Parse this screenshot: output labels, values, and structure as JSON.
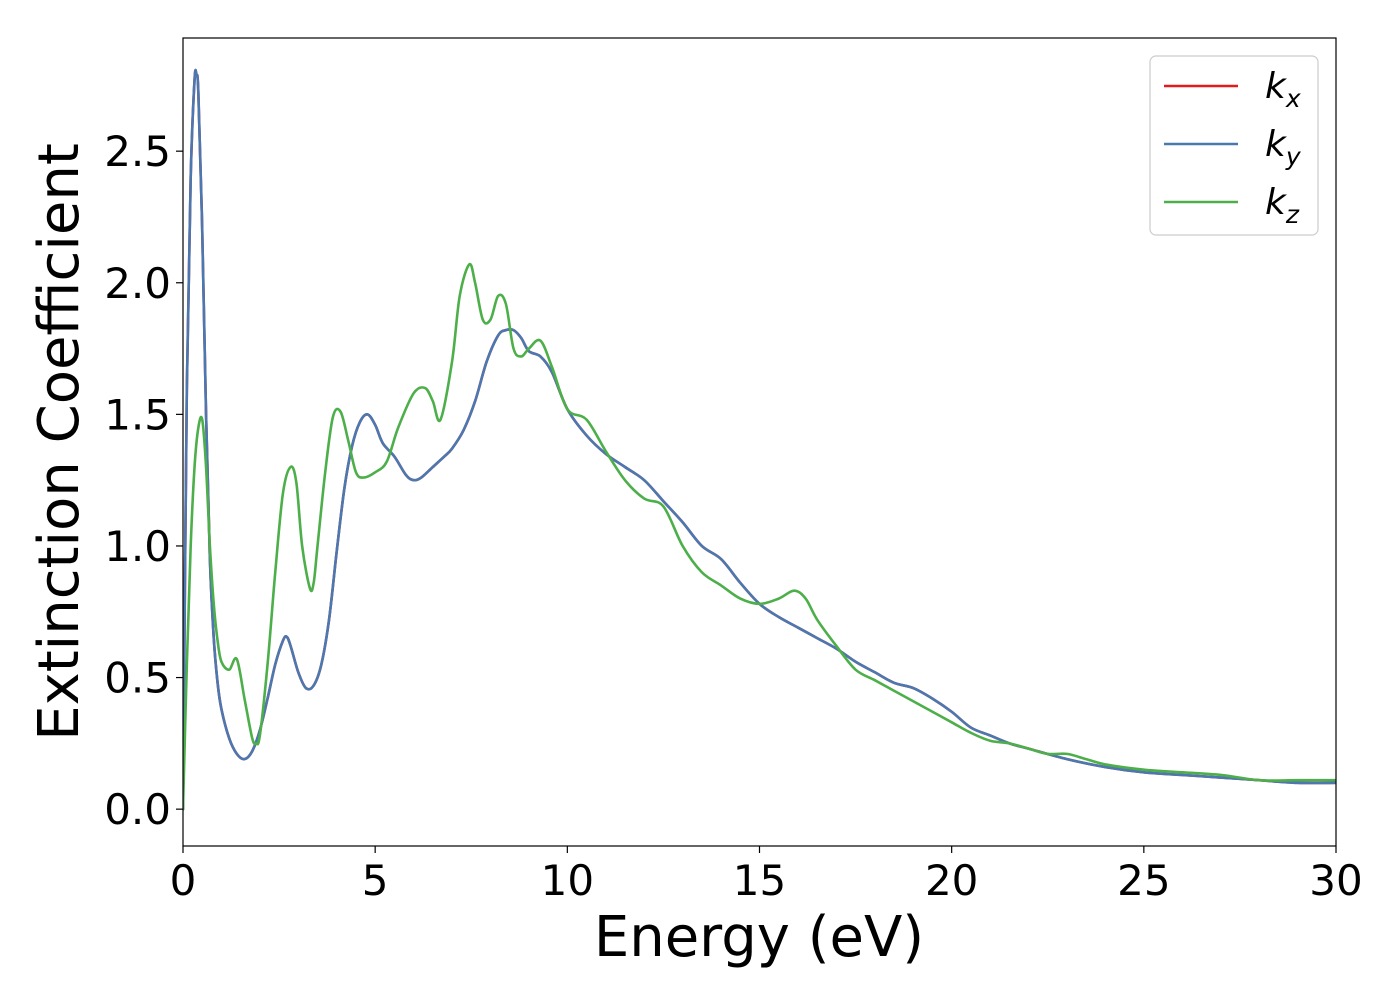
{
  "chart_data": {
    "type": "line",
    "title": "",
    "xlabel": "Energy (eV)",
    "ylabel": "Extinction Coefficient",
    "xlim": [
      0,
      30
    ],
    "ylim": [
      -0.14,
      2.93
    ],
    "xticks": [
      "0",
      "5",
      "10",
      "15",
      "20",
      "25",
      "30"
    ],
    "xtick_values": [
      0,
      5,
      10,
      15,
      20,
      25,
      30
    ],
    "yticks": [
      "0.0",
      "0.5",
      "1.0",
      "1.5",
      "2.0",
      "2.5"
    ],
    "ytick_values": [
      0,
      0.5,
      1.0,
      1.5,
      2.0,
      2.5
    ],
    "grid": false,
    "legend_position": "top-right",
    "series": [
      {
        "name": "k_x",
        "legend_base": "k",
        "legend_sub": "x",
        "color": "#e41a1c",
        "x": [
          0,
          0.1,
          0.2,
          0.3,
          0.35,
          0.4,
          0.5,
          0.6,
          0.7,
          0.8,
          0.9,
          1.0,
          1.2,
          1.4,
          1.6,
          1.8,
          2.0,
          2.2,
          2.4,
          2.6,
          2.7,
          2.8,
          3.0,
          3.2,
          3.4,
          3.6,
          3.8,
          4.0,
          4.2,
          4.4,
          4.6,
          4.8,
          5.0,
          5.2,
          5.5,
          5.8,
          6.0,
          6.2,
          6.5,
          6.8,
          7.0,
          7.3,
          7.6,
          7.9,
          8.2,
          8.4,
          8.6,
          8.8,
          9.0,
          9.3,
          9.6,
          10.0,
          10.5,
          11.0,
          11.5,
          12.0,
          12.5,
          13.0,
          13.5,
          14.0,
          14.5,
          15.0,
          15.5,
          16.0,
          16.5,
          17.0,
          17.5,
          18.0,
          18.5,
          19.0,
          19.5,
          20.0,
          20.5,
          21.0,
          21.5,
          22.0,
          23.0,
          24.0,
          25.0,
          26.0,
          27.0,
          28.0,
          29.0,
          30.0
        ],
        "y": [
          0.0,
          1.6,
          2.4,
          2.77,
          2.79,
          2.72,
          2.2,
          1.5,
          0.95,
          0.65,
          0.48,
          0.38,
          0.27,
          0.21,
          0.19,
          0.22,
          0.3,
          0.42,
          0.55,
          0.64,
          0.655,
          0.62,
          0.52,
          0.46,
          0.47,
          0.55,
          0.72,
          0.98,
          1.22,
          1.38,
          1.47,
          1.5,
          1.46,
          1.39,
          1.34,
          1.27,
          1.25,
          1.26,
          1.3,
          1.34,
          1.37,
          1.44,
          1.55,
          1.7,
          1.8,
          1.82,
          1.82,
          1.79,
          1.74,
          1.72,
          1.66,
          1.52,
          1.42,
          1.35,
          1.3,
          1.25,
          1.17,
          1.09,
          1.0,
          0.95,
          0.86,
          0.78,
          0.73,
          0.69,
          0.65,
          0.61,
          0.56,
          0.52,
          0.48,
          0.46,
          0.42,
          0.37,
          0.31,
          0.28,
          0.25,
          0.23,
          0.19,
          0.16,
          0.14,
          0.13,
          0.12,
          0.11,
          0.1,
          0.1
        ]
      },
      {
        "name": "k_y",
        "legend_base": "k",
        "legend_sub": "y",
        "color": "#4a78b0",
        "x": [
          0,
          0.1,
          0.2,
          0.3,
          0.35,
          0.4,
          0.5,
          0.6,
          0.7,
          0.8,
          0.9,
          1.0,
          1.2,
          1.4,
          1.6,
          1.8,
          2.0,
          2.2,
          2.4,
          2.6,
          2.7,
          2.8,
          3.0,
          3.2,
          3.4,
          3.6,
          3.8,
          4.0,
          4.2,
          4.4,
          4.6,
          4.8,
          5.0,
          5.2,
          5.5,
          5.8,
          6.0,
          6.2,
          6.5,
          6.8,
          7.0,
          7.3,
          7.6,
          7.9,
          8.2,
          8.4,
          8.6,
          8.8,
          9.0,
          9.3,
          9.6,
          10.0,
          10.5,
          11.0,
          11.5,
          12.0,
          12.5,
          13.0,
          13.5,
          14.0,
          14.5,
          15.0,
          15.5,
          16.0,
          16.5,
          17.0,
          17.5,
          18.0,
          18.5,
          19.0,
          19.5,
          20.0,
          20.5,
          21.0,
          21.5,
          22.0,
          23.0,
          24.0,
          25.0,
          26.0,
          27.0,
          28.0,
          29.0,
          30.0
        ],
        "y": [
          0.0,
          1.6,
          2.4,
          2.77,
          2.79,
          2.72,
          2.2,
          1.5,
          0.95,
          0.65,
          0.48,
          0.38,
          0.27,
          0.21,
          0.19,
          0.22,
          0.3,
          0.42,
          0.55,
          0.64,
          0.655,
          0.62,
          0.52,
          0.46,
          0.47,
          0.55,
          0.72,
          0.98,
          1.22,
          1.38,
          1.47,
          1.5,
          1.46,
          1.39,
          1.34,
          1.27,
          1.25,
          1.26,
          1.3,
          1.34,
          1.37,
          1.44,
          1.55,
          1.7,
          1.8,
          1.82,
          1.82,
          1.79,
          1.74,
          1.72,
          1.66,
          1.52,
          1.42,
          1.35,
          1.3,
          1.25,
          1.17,
          1.09,
          1.0,
          0.95,
          0.86,
          0.78,
          0.73,
          0.69,
          0.65,
          0.61,
          0.56,
          0.52,
          0.48,
          0.46,
          0.42,
          0.37,
          0.31,
          0.28,
          0.25,
          0.23,
          0.19,
          0.16,
          0.14,
          0.13,
          0.12,
          0.11,
          0.1,
          0.1
        ]
      },
      {
        "name": "k_z",
        "legend_base": "k",
        "legend_sub": "z",
        "color": "#4daf4a",
        "x": [
          0,
          0.1,
          0.2,
          0.3,
          0.4,
          0.5,
          0.6,
          0.7,
          0.8,
          0.9,
          1.0,
          1.2,
          1.4,
          1.6,
          1.8,
          1.9,
          2.0,
          2.2,
          2.4,
          2.6,
          2.8,
          2.95,
          3.1,
          3.3,
          3.4,
          3.5,
          3.7,
          3.9,
          4.1,
          4.3,
          4.5,
          4.7,
          5.0,
          5.3,
          5.6,
          6.0,
          6.3,
          6.5,
          6.7,
          7.0,
          7.2,
          7.45,
          7.6,
          7.8,
          8.0,
          8.2,
          8.4,
          8.6,
          8.8,
          9.0,
          9.3,
          9.6,
          10.0,
          10.5,
          11.0,
          11.5,
          12.0,
          12.5,
          13.0,
          13.5,
          14.0,
          14.5,
          15.0,
          15.5,
          15.9,
          16.2,
          16.5,
          17.0,
          17.5,
          18.0,
          18.5,
          19.0,
          19.5,
          20.0,
          20.5,
          21.0,
          21.5,
          22.0,
          22.5,
          23.0,
          23.5,
          24.0,
          25.0,
          26.0,
          27.0,
          28.0,
          29.0,
          30.0
        ],
        "y": [
          0.0,
          0.55,
          1.0,
          1.3,
          1.45,
          1.48,
          1.3,
          1.0,
          0.78,
          0.64,
          0.56,
          0.53,
          0.57,
          0.42,
          0.27,
          0.25,
          0.28,
          0.55,
          0.9,
          1.2,
          1.3,
          1.24,
          1.0,
          0.84,
          0.86,
          1.0,
          1.28,
          1.49,
          1.51,
          1.4,
          1.28,
          1.26,
          1.28,
          1.32,
          1.45,
          1.58,
          1.6,
          1.55,
          1.48,
          1.7,
          1.95,
          2.07,
          2.0,
          1.86,
          1.86,
          1.95,
          1.92,
          1.75,
          1.72,
          1.75,
          1.78,
          1.68,
          1.52,
          1.48,
          1.36,
          1.25,
          1.18,
          1.15,
          1.0,
          0.9,
          0.85,
          0.8,
          0.78,
          0.8,
          0.83,
          0.8,
          0.72,
          0.62,
          0.53,
          0.49,
          0.45,
          0.41,
          0.37,
          0.33,
          0.29,
          0.26,
          0.25,
          0.23,
          0.21,
          0.21,
          0.19,
          0.17,
          0.15,
          0.14,
          0.13,
          0.11,
          0.11,
          0.11
        ]
      }
    ]
  }
}
